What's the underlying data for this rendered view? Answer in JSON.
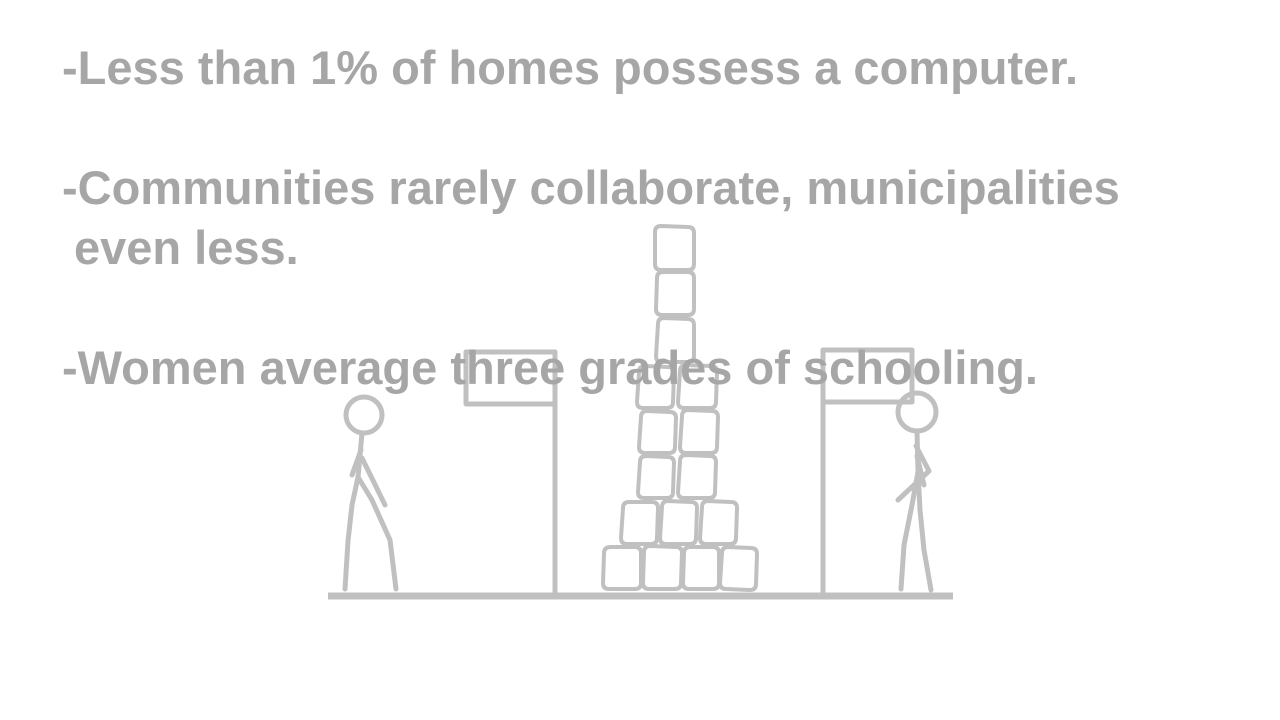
{
  "slide": {
    "bullets": [
      {
        "lines": [
          "-Less than 1% of homes possess a computer."
        ]
      },
      {
        "lines": [
          "-Communities rarely collaborate, municipalities",
          "even less."
        ]
      },
      {
        "lines": [
          "-Women average three grades of schooling."
        ]
      }
    ]
  },
  "colors": {
    "text": "#a6a6a6",
    "drawing": "#c0c0c0",
    "background": "#ffffff"
  }
}
